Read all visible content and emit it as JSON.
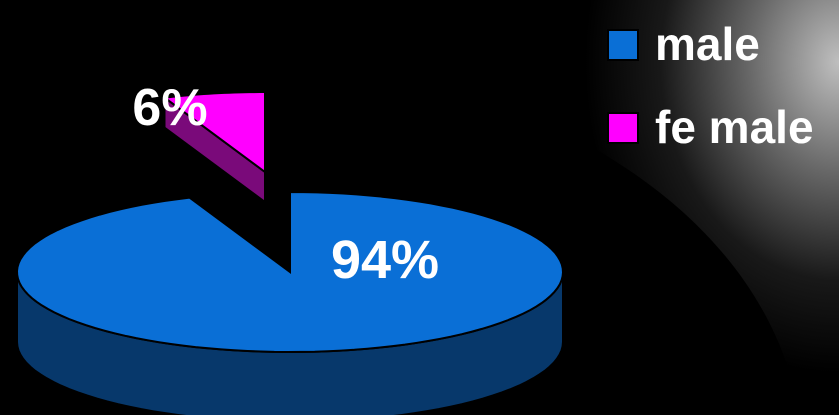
{
  "chart_data": {
    "type": "pie",
    "style": "3d-exploded",
    "slices": [
      {
        "label": "male",
        "value": 94,
        "data_label": "94%",
        "color": "#0a6fd6",
        "side_color": "#07386b"
      },
      {
        "label": "female",
        "value": 6,
        "data_label": "6%",
        "color": "#ff00ff",
        "side_color": "#7a0a7a"
      }
    ],
    "legend": {
      "position": "top-right",
      "items": [
        {
          "label": "male",
          "color": "#0a6fd6"
        },
        {
          "label": "fe male",
          "color": "#ff00ff"
        }
      ]
    },
    "background": "#000000"
  }
}
